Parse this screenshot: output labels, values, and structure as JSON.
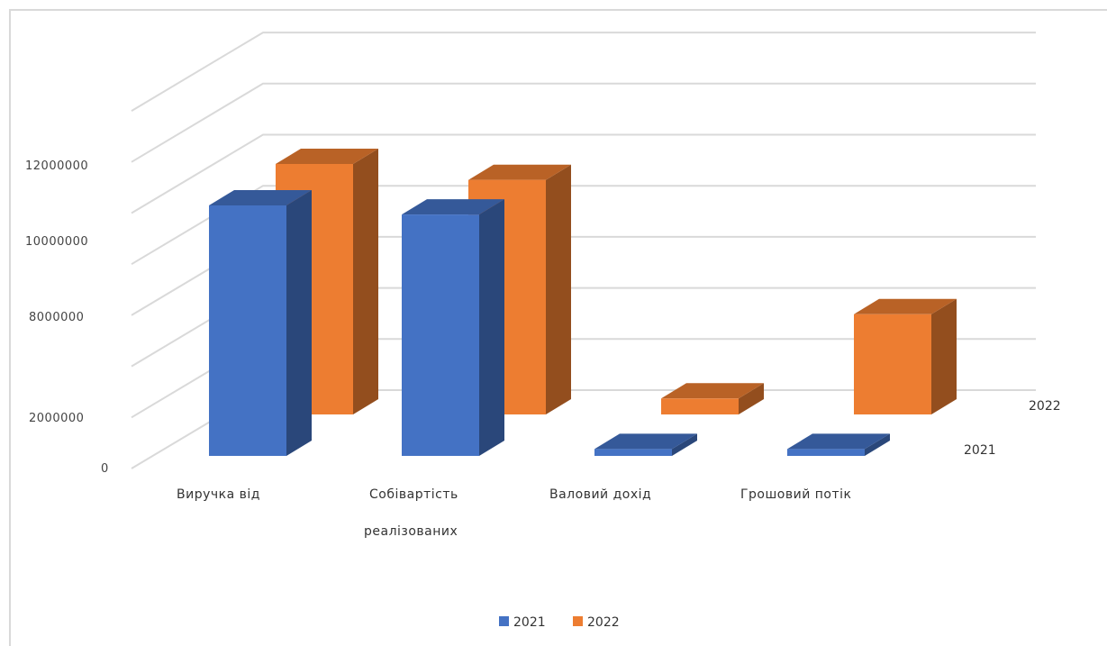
{
  "chart_data": {
    "type": "bar",
    "view": "3d-clustered-depth",
    "categories": [
      "Виручка  від",
      "Собівартість",
      "Валовий  дохід",
      "Грошовий  потік"
    ],
    "category_second_line": [
      "",
      "реалізованих",
      "",
      ""
    ],
    "series": [
      {
        "name": "2021",
        "color": "#4472c4",
        "values": [
          11000000,
          10600000,
          300000,
          300000
        ]
      },
      {
        "name": "2022",
        "color": "#ed7d31",
        "values": [
          11000000,
          10300000,
          700000,
          4400000
        ]
      }
    ],
    "y_tick_labels": [
      "0",
      "2000000",
      "8000000",
      "10000000",
      "12000000"
    ],
    "depth_labels": [
      "2021",
      "2022"
    ],
    "legend_position": "bottom",
    "grid": true
  }
}
